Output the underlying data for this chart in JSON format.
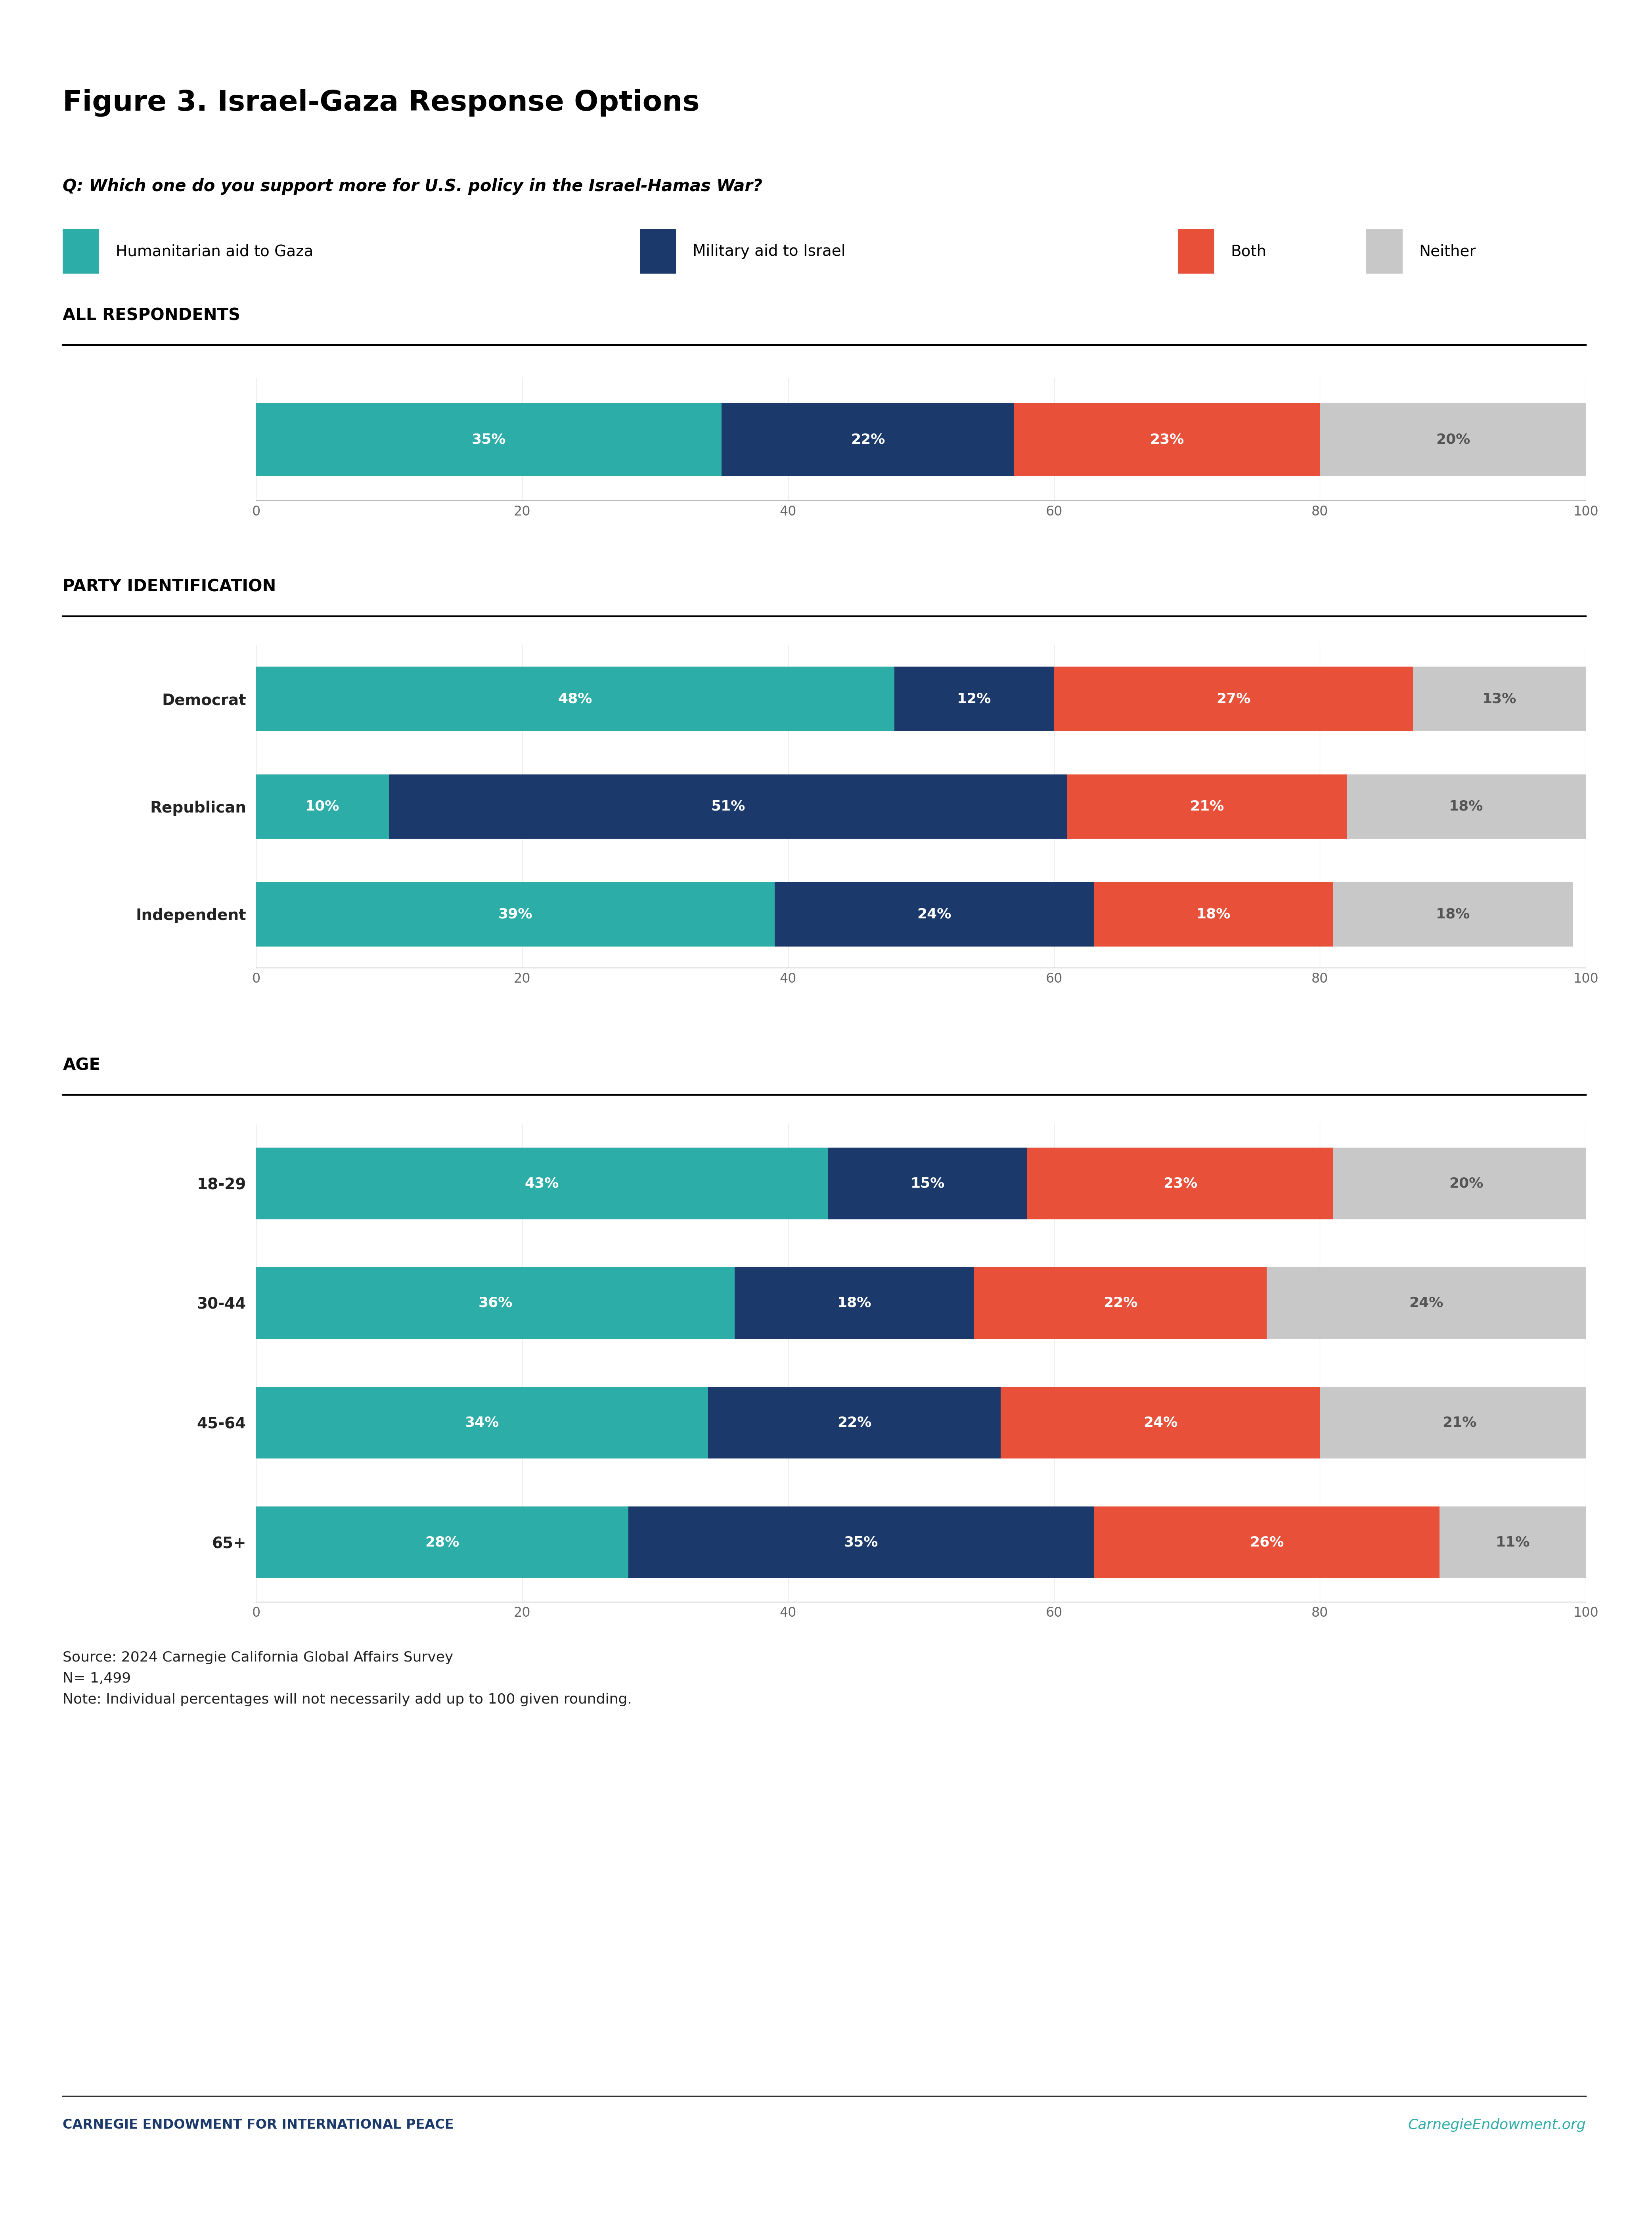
{
  "title": "Figure 3. Israel-Gaza Response Options",
  "question": "Q: Which one do you support more for U.S. policy in the Israel-Hamas War?",
  "legend_labels": [
    "Humanitarian aid to Gaza",
    "Military aid to Israel",
    "Both",
    "Neither"
  ],
  "colors": [
    "#2DADA8",
    "#1B3A6B",
    "#E8503A",
    "#C8C8C8"
  ],
  "sections": [
    {
      "section_title": "ALL RESPONDENTS",
      "groups": [
        {
          "label": "",
          "values": [
            35,
            22,
            23,
            20
          ]
        }
      ]
    },
    {
      "section_title": "PARTY IDENTIFICATION",
      "groups": [
        {
          "label": "Democrat",
          "values": [
            48,
            12,
            27,
            13
          ]
        },
        {
          "label": "Republican",
          "values": [
            10,
            51,
            21,
            18
          ]
        },
        {
          "label": "Independent",
          "values": [
            39,
            24,
            18,
            18
          ]
        }
      ]
    },
    {
      "section_title": "AGE",
      "groups": [
        {
          "label": "18-29",
          "values": [
            43,
            15,
            23,
            20
          ]
        },
        {
          "label": "30-44",
          "values": [
            36,
            18,
            22,
            24
          ]
        },
        {
          "label": "45-64",
          "values": [
            34,
            22,
            24,
            21
          ]
        },
        {
          "label": "65+",
          "values": [
            28,
            35,
            26,
            11
          ]
        }
      ]
    }
  ],
  "xlim": [
    0,
    100
  ],
  "xticks": [
    0,
    20,
    40,
    60,
    80,
    100
  ],
  "source_text": "Source: 2024 Carnegie California Global Affairs Survey\nN= 1,499\nNote: Individual percentages will not necessarily add up to 100 given rounding.",
  "footer_left": "CARNEGIE ENDOWMENT FOR INTERNATIONAL PEACE",
  "footer_right": "CarnegieEndowment.org",
  "footer_left_color": "#1B3A6B",
  "footer_right_color": "#2DADA8",
  "bg_color": "#FFFFFF",
  "bar_height": 0.6,
  "label_fontsize": 28,
  "tick_fontsize": 24,
  "section_fontsize": 30,
  "title_fontsize": 52,
  "question_fontsize": 30,
  "legend_fontsize": 28,
  "value_label_fontsize": 26
}
